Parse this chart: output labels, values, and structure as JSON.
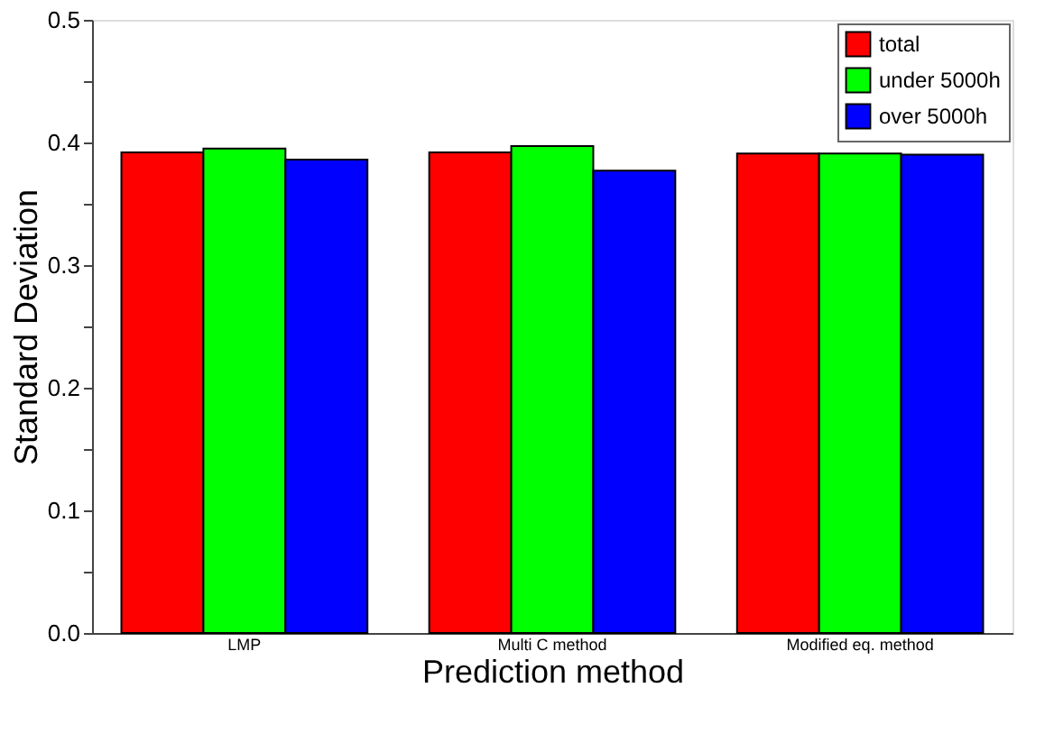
{
  "chart_data": {
    "type": "bar",
    "xlabel": "Prediction method",
    "ylabel": "Standard Deviation",
    "categories": [
      "LMP",
      "Multi C method",
      "Modified eq. method"
    ],
    "series": [
      {
        "name": "total",
        "color": "#ff0000",
        "values": [
          0.392,
          0.392,
          0.391
        ]
      },
      {
        "name": "under 5000h",
        "color": "#00ff00",
        "values": [
          0.395,
          0.397,
          0.391
        ]
      },
      {
        "name": "over 5000h",
        "color": "#0000ff",
        "values": [
          0.386,
          0.377,
          0.39
        ]
      }
    ],
    "ylim": [
      0,
      0.5
    ],
    "yticks": [
      {
        "value": 0,
        "label": "0.0"
      },
      {
        "value": 0.05,
        "label": null
      },
      {
        "value": 0.1,
        "label": "0.1"
      },
      {
        "value": 0.15,
        "label": null
      },
      {
        "value": 0.2,
        "label": "0.2"
      },
      {
        "value": 0.25,
        "label": null
      },
      {
        "value": 0.3,
        "label": "0.3"
      },
      {
        "value": 0.35,
        "label": null
      },
      {
        "value": 0.4,
        "label": "0.4"
      },
      {
        "value": 0.45,
        "label": null
      },
      {
        "value": 0.5,
        "label": "0.5"
      }
    ],
    "legend": "top right",
    "grid": false
  }
}
